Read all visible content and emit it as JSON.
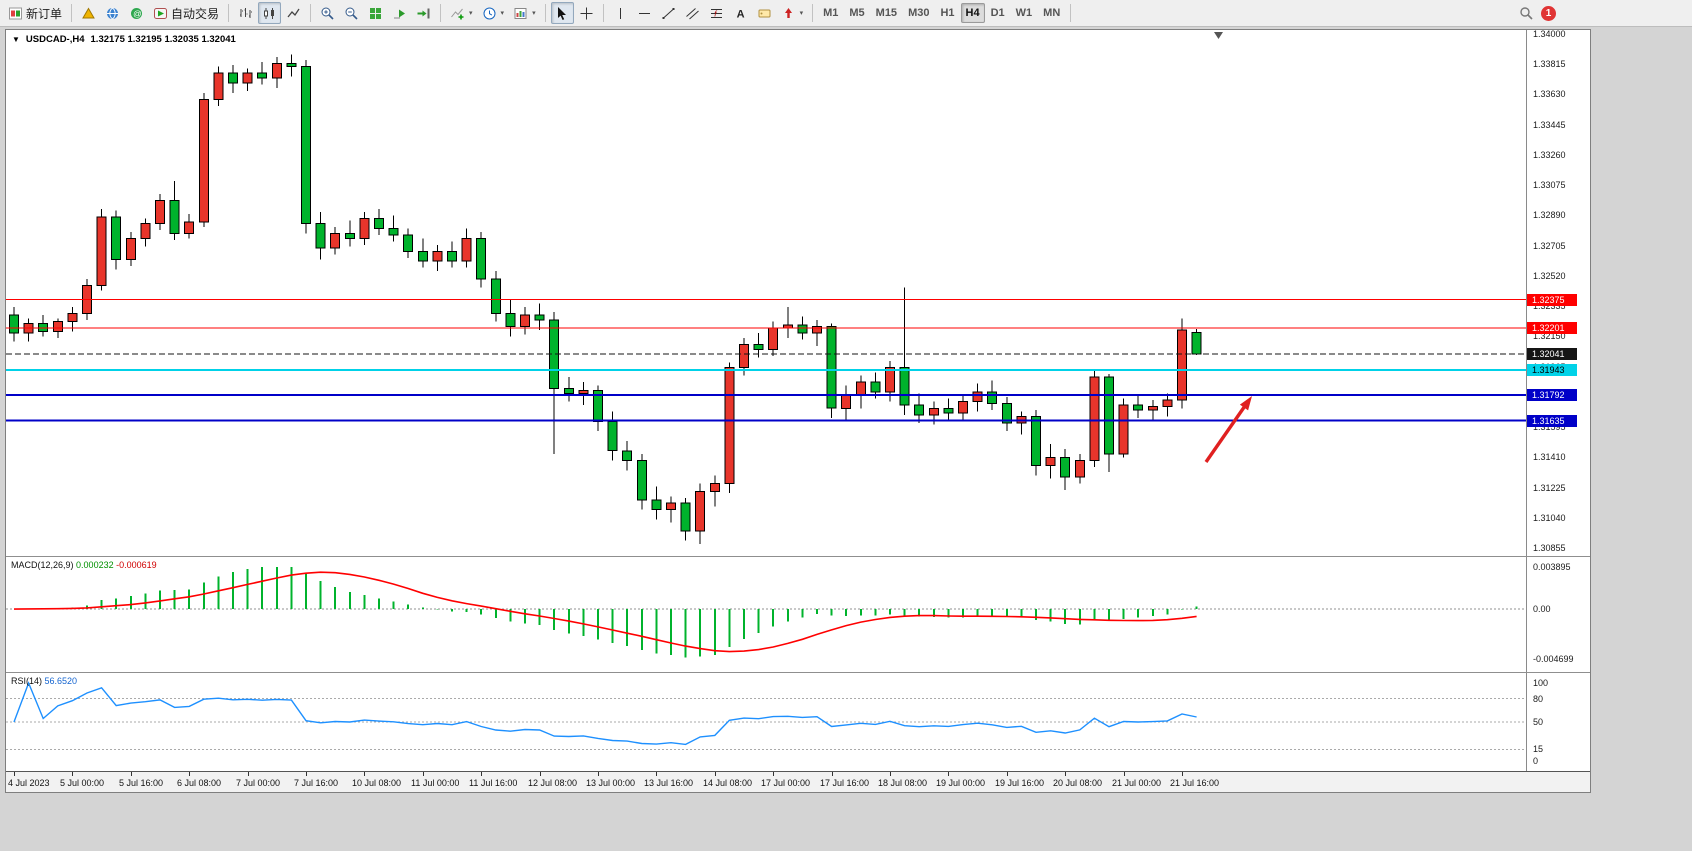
{
  "toolbar": {
    "new_order": "新订单",
    "auto_trading": "自动交易",
    "timeframes": [
      "M1",
      "M5",
      "M15",
      "M30",
      "H1",
      "H4",
      "D1",
      "W1",
      "MN"
    ],
    "active_timeframe": "H4",
    "notification_count": "1"
  },
  "chart": {
    "title": "USDCAD-,H4",
    "ohlc_text": "1.32175 1.32195 1.32035 1.32041"
  },
  "macd": {
    "name": "MACD(12,26,9)",
    "main_value": "0.000232",
    "signal_value": "-0.000619"
  },
  "rsi": {
    "name": "RSI(14)",
    "value": "56.6520"
  },
  "chart_data": {
    "type": "candlestick",
    "symbol": "USDCAD-",
    "timeframe": "H4",
    "title": "USDCAD-,H4",
    "current_ohlc": {
      "o": 1.32175,
      "h": 1.32195,
      "l": 1.32035,
      "c": 1.32041
    },
    "bull_color": "#e8352b",
    "bear_color": "#00b32c",
    "wick_color": "#000000",
    "background": "#ffffff",
    "price_axis": {
      "min": 1.30855,
      "max": 1.34,
      "tick_step": 0.00185,
      "ticks": [
        "1.34000",
        "1.33815",
        "1.33630",
        "1.33445",
        "1.33260",
        "1.33075",
        "1.32890",
        "1.32705",
        "1.32520",
        "1.32335",
        "1.32150",
        "1.31965",
        "1.31780",
        "1.31595",
        "1.31410",
        "1.31225",
        "1.31040",
        "1.30855"
      ]
    },
    "time_labels": [
      {
        "i": 0,
        "label": "4 Jul 2023"
      },
      {
        "i": 4,
        "label": "5 Jul 00:00"
      },
      {
        "i": 8,
        "label": "5 Jul 16:00"
      },
      {
        "i": 12,
        "label": "6 Jul 08:00"
      },
      {
        "i": 16,
        "label": "7 Jul 00:00"
      },
      {
        "i": 20,
        "label": "7 Jul 16:00"
      },
      {
        "i": 24,
        "label": "10 Jul 08:00"
      },
      {
        "i": 28,
        "label": "11 Jul 00:00"
      },
      {
        "i": 32,
        "label": "11 Jul 16:00"
      },
      {
        "i": 36,
        "label": "12 Jul 08:00"
      },
      {
        "i": 40,
        "label": "13 Jul 00:00"
      },
      {
        "i": 44,
        "label": "13 Jul 16:00"
      },
      {
        "i": 48,
        "label": "14 Jul 08:00"
      },
      {
        "i": 52,
        "label": "17 Jul 00:00"
      },
      {
        "i": 56,
        "label": "17 Jul 16:00"
      },
      {
        "i": 60,
        "label": "18 Jul 08:00"
      },
      {
        "i": 64,
        "label": "19 Jul 00:00"
      },
      {
        "i": 68,
        "label": "19 Jul 16:00"
      },
      {
        "i": 72,
        "label": "20 Jul 08:00"
      },
      {
        "i": 76,
        "label": "21 Jul 00:00"
      },
      {
        "i": 80,
        "label": "21 Jul 16:00"
      }
    ],
    "candles": [
      [
        1.3228,
        1.3233,
        1.3212,
        1.3217
      ],
      [
        1.3217,
        1.3226,
        1.3212,
        1.3223
      ],
      [
        1.3223,
        1.3228,
        1.3215,
        1.3218
      ],
      [
        1.3218,
        1.3226,
        1.3214,
        1.3224
      ],
      [
        1.3224,
        1.3233,
        1.3218,
        1.3229
      ],
      [
        1.3229,
        1.325,
        1.3225,
        1.3246
      ],
      [
        1.3246,
        1.3293,
        1.3243,
        1.3288
      ],
      [
        1.3288,
        1.3292,
        1.3256,
        1.3262
      ],
      [
        1.3262,
        1.3279,
        1.3258,
        1.3275
      ],
      [
        1.3275,
        1.3287,
        1.327,
        1.3284
      ],
      [
        1.3284,
        1.3302,
        1.328,
        1.3298
      ],
      [
        1.3298,
        1.331,
        1.3274,
        1.3278
      ],
      [
        1.3278,
        1.329,
        1.3275,
        1.3285
      ],
      [
        1.3285,
        1.3364,
        1.3282,
        1.336
      ],
      [
        1.336,
        1.338,
        1.3356,
        1.3376
      ],
      [
        1.3376,
        1.3381,
        1.3364,
        1.337
      ],
      [
        1.337,
        1.3379,
        1.3365,
        1.3376
      ],
      [
        1.3376,
        1.3383,
        1.3369,
        1.3373
      ],
      [
        1.3373,
        1.3386,
        1.3367,
        1.3382
      ],
      [
        1.3382,
        1.33875,
        1.3374,
        1.338
      ],
      [
        1.338,
        1.3384,
        1.3278,
        1.3284
      ],
      [
        1.3284,
        1.3291,
        1.3262,
        1.3269
      ],
      [
        1.3269,
        1.3282,
        1.3265,
        1.3278
      ],
      [
        1.3278,
        1.3286,
        1.327,
        1.3275
      ],
      [
        1.3275,
        1.3291,
        1.3271,
        1.3287
      ],
      [
        1.3287,
        1.3293,
        1.3277,
        1.3281
      ],
      [
        1.3281,
        1.3289,
        1.3273,
        1.3277
      ],
      [
        1.3277,
        1.3281,
        1.3263,
        1.3267
      ],
      [
        1.3267,
        1.3275,
        1.3257,
        1.3261
      ],
      [
        1.3261,
        1.3271,
        1.3255,
        1.3267
      ],
      [
        1.3267,
        1.3273,
        1.3257,
        1.3261
      ],
      [
        1.3261,
        1.3281,
        1.3257,
        1.3275
      ],
      [
        1.3275,
        1.3279,
        1.3245,
        1.325
      ],
      [
        1.325,
        1.3255,
        1.3224,
        1.3229
      ],
      [
        1.3229,
        1.3238,
        1.3215,
        1.3221
      ],
      [
        1.3221,
        1.3233,
        1.3216,
        1.3228
      ],
      [
        1.3228,
        1.3235,
        1.3219,
        1.3225
      ],
      [
        1.3225,
        1.323,
        1.3143,
        1.3183
      ],
      [
        1.3183,
        1.319,
        1.3175,
        1.318
      ],
      [
        1.318,
        1.3187,
        1.3173,
        1.3182
      ],
      [
        1.3182,
        1.3185,
        1.3157,
        1.3163
      ],
      [
        1.3163,
        1.3169,
        1.3139,
        1.3145
      ],
      [
        1.3145,
        1.3151,
        1.3133,
        1.3139
      ],
      [
        1.3139,
        1.3143,
        1.3109,
        1.3115
      ],
      [
        1.3115,
        1.3123,
        1.3103,
        1.3109
      ],
      [
        1.3109,
        1.3117,
        1.3101,
        1.3113
      ],
      [
        1.3113,
        1.3116,
        1.309,
        1.3096
      ],
      [
        1.3096,
        1.3125,
        1.3088,
        1.312
      ],
      [
        1.312,
        1.313,
        1.3111,
        1.3125
      ],
      [
        1.3125,
        1.3199,
        1.3119,
        1.3196
      ],
      [
        1.3196,
        1.3214,
        1.3191,
        1.321
      ],
      [
        1.321,
        1.3217,
        1.3202,
        1.3207
      ],
      [
        1.3207,
        1.3224,
        1.3203,
        1.322
      ],
      [
        1.322,
        1.3233,
        1.3214,
        1.3222
      ],
      [
        1.3222,
        1.3227,
        1.3213,
        1.3217
      ],
      [
        1.3217,
        1.3225,
        1.3209,
        1.3221
      ],
      [
        1.3221,
        1.3223,
        1.3165,
        1.3171
      ],
      [
        1.3171,
        1.3185,
        1.3163,
        1.3179
      ],
      [
        1.3179,
        1.3191,
        1.3171,
        1.3187
      ],
      [
        1.3187,
        1.3193,
        1.3177,
        1.3181
      ],
      [
        1.3181,
        1.32,
        1.3175,
        1.3196
      ],
      [
        1.3196,
        1.3245,
        1.3167,
        1.3173
      ],
      [
        1.3173,
        1.318,
        1.3162,
        1.3167
      ],
      [
        1.3167,
        1.3175,
        1.3161,
        1.3171
      ],
      [
        1.3171,
        1.3177,
        1.3163,
        1.3168
      ],
      [
        1.3168,
        1.3179,
        1.3164,
        1.3175
      ],
      [
        1.3175,
        1.3186,
        1.3169,
        1.3181
      ],
      [
        1.3181,
        1.3188,
        1.317,
        1.3174
      ],
      [
        1.3174,
        1.3178,
        1.3157,
        1.3162
      ],
      [
        1.3162,
        1.3169,
        1.3155,
        1.3166
      ],
      [
        1.3166,
        1.317,
        1.313,
        1.3136
      ],
      [
        1.3136,
        1.3149,
        1.3128,
        1.3141
      ],
      [
        1.3141,
        1.3146,
        1.3121,
        1.3129
      ],
      [
        1.3129,
        1.3143,
        1.3125,
        1.3139
      ],
      [
        1.3139,
        1.3194,
        1.3135,
        1.319
      ],
      [
        1.319,
        1.3192,
        1.3132,
        1.3143
      ],
      [
        1.3143,
        1.3177,
        1.3141,
        1.3173
      ],
      [
        1.3173,
        1.3179,
        1.3165,
        1.317
      ],
      [
        1.317,
        1.3176,
        1.3164,
        1.3172
      ],
      [
        1.3172,
        1.318,
        1.3166,
        1.3176
      ],
      [
        1.3176,
        1.3226,
        1.3171,
        1.3219
      ],
      [
        1.32175,
        1.32195,
        1.32035,
        1.32041
      ]
    ],
    "levels": [
      {
        "price": 1.32375,
        "label": "1.32375",
        "color": "#ff0000",
        "text_color": "#ffffff",
        "width": 1,
        "style": "solid"
      },
      {
        "price": 1.32201,
        "label": "1.32201",
        "color": "#ff0000",
        "text_color": "#ffffff",
        "width": 1,
        "style": "solid"
      },
      {
        "price": 1.32041,
        "label": "1.32041",
        "color": "#151515",
        "text_color": "#ffffff",
        "width": 1,
        "style": "dash"
      },
      {
        "price": 1.31943,
        "label": "1.31943",
        "color": "#00d2e8",
        "text_color": "#000000",
        "width": 2,
        "style": "solid"
      },
      {
        "price": 1.31792,
        "label": "1.31792",
        "color": "#0000c8",
        "text_color": "#ffffff",
        "width": 2,
        "style": "solid"
      },
      {
        "price": 1.31635,
        "label": "1.31635",
        "color": "#0000c8",
        "text_color": "#ffffff",
        "width": 2,
        "style": "solid"
      }
    ],
    "indicators": [
      {
        "type": "MACD",
        "params": [
          12,
          26,
          9
        ],
        "current_main": 0.000232,
        "current_signal": -0.000619,
        "scale": {
          "max": 0.003895,
          "min": -0.004699,
          "max_label": "0.003895",
          "mid_label": "0.00",
          "min_label": "-0.004699"
        },
        "histogram_color": "#00b32c",
        "signal_color": "#ff0000"
      },
      {
        "type": "RSI",
        "params": [
          14
        ],
        "current": 56.652,
        "range": [
          0,
          100
        ],
        "scale_labels": [
          "100",
          "80",
          "50",
          "15",
          "0"
        ],
        "levels": [
          80,
          50,
          15
        ],
        "line_color": "#1e90ff"
      }
    ],
    "annotations": [
      {
        "type": "arrow-up-right",
        "color": "#e02020",
        "note": "red arrow pointing toward the blue 1.31792 level near 21 Jul"
      }
    ]
  }
}
